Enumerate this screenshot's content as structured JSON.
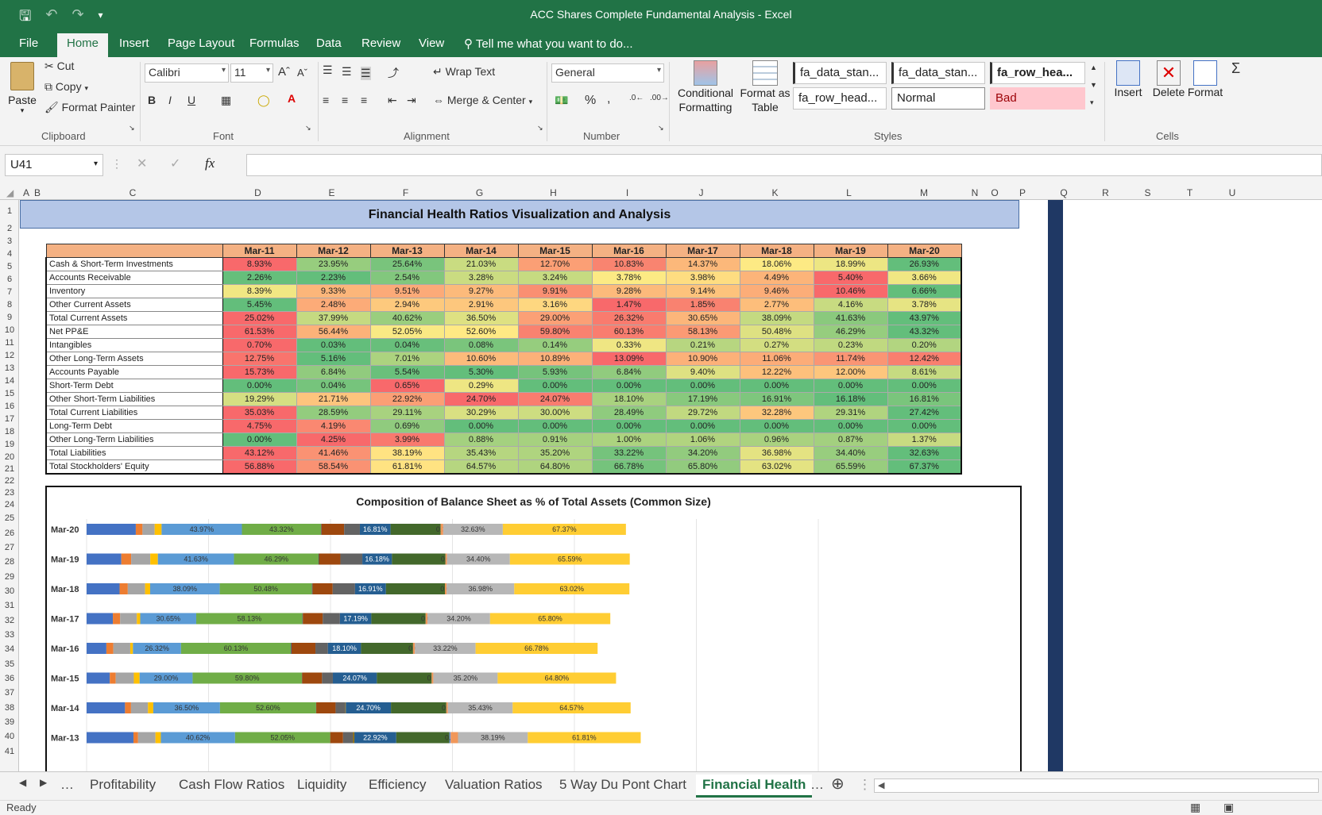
{
  "window": {
    "title": "ACC Shares Complete Fundamental Analysis - Excel"
  },
  "ribbon_tabs": [
    "File",
    "Home",
    "Insert",
    "Page Layout",
    "Formulas",
    "Data",
    "Review",
    "View"
  ],
  "tell_me": "Tell me what you want to do...",
  "clipboard": {
    "paste": "Paste",
    "cut": "Cut",
    "copy": "Copy",
    "format_painter": "Format Painter",
    "label": "Clipboard"
  },
  "font": {
    "name": "Calibri",
    "size": "11",
    "label": "Font"
  },
  "alignment": {
    "wrap": "Wrap Text",
    "merge": "Merge & Center",
    "label": "Alignment"
  },
  "number": {
    "format": "General",
    "label": "Number"
  },
  "styles": {
    "conditional": "Conditional\nFormatting",
    "format_table": "Format as\nTable",
    "box1": "fa_data_stan...",
    "box2": "fa_data_stan...",
    "box3": "fa_row_hea...",
    "box4": "fa_row_head...",
    "normal": "Normal",
    "bad": "Bad",
    "label": "Styles"
  },
  "cells": {
    "insert": "Insert",
    "delete": "Delete",
    "format": "Format",
    "label": "Cells"
  },
  "formula_bar": {
    "name_box": "U41",
    "fx": "fx",
    "content": ""
  },
  "columns": [
    "A",
    "B",
    "C",
    "D",
    "E",
    "F",
    "G",
    "H",
    "I",
    "J",
    "K",
    "L",
    "M",
    "N",
    "O",
    "P",
    "Q",
    "R",
    "S",
    "T",
    "U"
  ],
  "banner": "Financial Health Ratios Visualization and Analysis",
  "table": {
    "headers": [
      "Mar-11",
      "Mar-12",
      "Mar-13",
      "Mar-14",
      "Mar-15",
      "Mar-16",
      "Mar-17",
      "Mar-18",
      "Mar-19",
      "Mar-20"
    ],
    "rows": [
      {
        "label": "Cash & Short-Term Investments",
        "values": [
          "8.93%",
          "23.95%",
          "25.64%",
          "21.03%",
          "12.70%",
          "10.83%",
          "14.37%",
          "18.06%",
          "18.99%",
          "26.93%"
        ]
      },
      {
        "label": "Accounts Receivable",
        "values": [
          "2.26%",
          "2.23%",
          "2.54%",
          "3.28%",
          "3.24%",
          "3.78%",
          "3.98%",
          "4.49%",
          "5.40%",
          "3.66%"
        ]
      },
      {
        "label": "Inventory",
        "values": [
          "8.39%",
          "9.33%",
          "9.51%",
          "9.27%",
          "9.91%",
          "9.28%",
          "9.14%",
          "9.46%",
          "10.46%",
          "6.66%"
        ]
      },
      {
        "label": "Other Current Assets",
        "values": [
          "5.45%",
          "2.48%",
          "2.94%",
          "2.91%",
          "3.16%",
          "1.47%",
          "1.85%",
          "2.77%",
          "4.16%",
          "3.78%"
        ]
      },
      {
        "label": "Total Current Assets",
        "values": [
          "25.02%",
          "37.99%",
          "40.62%",
          "36.50%",
          "29.00%",
          "26.32%",
          "30.65%",
          "38.09%",
          "41.63%",
          "43.97%"
        ]
      },
      {
        "label": "Net PP&E",
        "values": [
          "61.53%",
          "56.44%",
          "52.05%",
          "52.60%",
          "59.80%",
          "60.13%",
          "58.13%",
          "50.48%",
          "46.29%",
          "43.32%"
        ]
      },
      {
        "label": "Intangibles",
        "values": [
          "0.70%",
          "0.03%",
          "0.04%",
          "0.08%",
          "0.14%",
          "0.33%",
          "0.21%",
          "0.27%",
          "0.23%",
          "0.20%"
        ]
      },
      {
        "label": "Other Long-Term Assets",
        "values": [
          "12.75%",
          "5.16%",
          "7.01%",
          "10.60%",
          "10.89%",
          "13.09%",
          "10.90%",
          "11.06%",
          "11.74%",
          "12.42%"
        ]
      },
      {
        "label": "Accounts Payable",
        "values": [
          "15.73%",
          "6.84%",
          "5.54%",
          "5.30%",
          "5.93%",
          "6.84%",
          "9.40%",
          "12.22%",
          "12.00%",
          "8.61%"
        ]
      },
      {
        "label": "Short-Term Debt",
        "values": [
          "0.00%",
          "0.04%",
          "0.65%",
          "0.29%",
          "0.00%",
          "0.00%",
          "0.00%",
          "0.00%",
          "0.00%",
          "0.00%"
        ]
      },
      {
        "label": "Other Short-Term Liabilities",
        "values": [
          "19.29%",
          "21.71%",
          "22.92%",
          "24.70%",
          "24.07%",
          "18.10%",
          "17.19%",
          "16.91%",
          "16.18%",
          "16.81%"
        ]
      },
      {
        "label": "Total Current Liabilities",
        "values": [
          "35.03%",
          "28.59%",
          "29.11%",
          "30.29%",
          "30.00%",
          "28.49%",
          "29.72%",
          "32.28%",
          "29.31%",
          "27.42%"
        ]
      },
      {
        "label": "Long-Term Debt",
        "values": [
          "4.75%",
          "4.19%",
          "0.69%",
          "0.00%",
          "0.00%",
          "0.00%",
          "0.00%",
          "0.00%",
          "0.00%",
          "0.00%"
        ]
      },
      {
        "label": "Other Long-Term Liabilities",
        "values": [
          "0.00%",
          "4.25%",
          "3.99%",
          "0.88%",
          "0.91%",
          "1.00%",
          "1.06%",
          "0.96%",
          "0.87%",
          "1.37%"
        ]
      },
      {
        "label": "Total Liabilities",
        "values": [
          "43.12%",
          "41.46%",
          "38.19%",
          "35.43%",
          "35.20%",
          "33.22%",
          "34.20%",
          "36.98%",
          "34.40%",
          "32.63%"
        ]
      },
      {
        "label": "Total Stockholders' Equity",
        "values": [
          "56.88%",
          "58.54%",
          "61.81%",
          "64.57%",
          "64.80%",
          "66.78%",
          "65.80%",
          "63.02%",
          "65.59%",
          "67.37%"
        ]
      }
    ]
  },
  "chart_data": {
    "type": "bar",
    "orientation": "horizontal-stacked",
    "title": "Composition of Balance Sheet as % of Total Assets (Common Size)",
    "categories": [
      "Mar-20",
      "Mar-19",
      "Mar-18",
      "Mar-17",
      "Mar-16",
      "Mar-15",
      "Mar-14",
      "Mar-13"
    ],
    "segment_colors": [
      "#4472c4",
      "#ed7d31",
      "#a5a5a5",
      "#ffc000",
      "#5b9bd5",
      "#70ad47",
      "#9e480e",
      "#636363",
      "#255e91",
      "#43682b",
      "#f4b183",
      "#b4b4b4",
      "#ffc83d"
    ],
    "visible_labels": {
      "Mar-20": [
        "43.97%",
        "43.32%",
        "16.81%",
        "0.00%",
        "32.63%",
        "67.37%"
      ],
      "Mar-19": [
        "41.63%",
        "46.29%",
        "16.18%",
        "0.00%",
        "34.40%",
        "65.59%"
      ],
      "Mar-18": [
        "38.09%",
        "50.48%",
        "16.91%",
        "0.00%",
        "36.98%",
        "63.02%"
      ],
      "Mar-17": [
        "30.65%",
        "58.13%",
        "17.19%",
        "0.00%",
        "34.20%",
        "65.80%"
      ],
      "Mar-16": [
        "26.32%",
        "60.13%",
        "18.10%",
        "0.00%",
        "33.22%",
        "66.78%"
      ],
      "Mar-15": [
        "29.00%",
        "59.80%",
        "24.07%",
        "0.00%",
        "35.20%",
        "64.80%"
      ],
      "Mar-14": [
        "36.50%",
        "52.60%",
        "24.70%",
        "0.00%",
        "35.43%",
        "64.57%"
      ],
      "Mar-13": [
        "40.62%",
        "52.05%",
        "22.92%",
        "0.69%",
        "38.19%",
        "61.81%"
      ]
    }
  },
  "sheet_tabs": [
    "Profitability",
    "Cash Flow Ratios",
    "Liquidity",
    "Efficiency",
    "Valuation Ratios",
    "5 Way Du Pont Chart",
    "Financial Health"
  ],
  "active_sheet": "Financial Health",
  "status": "Ready"
}
